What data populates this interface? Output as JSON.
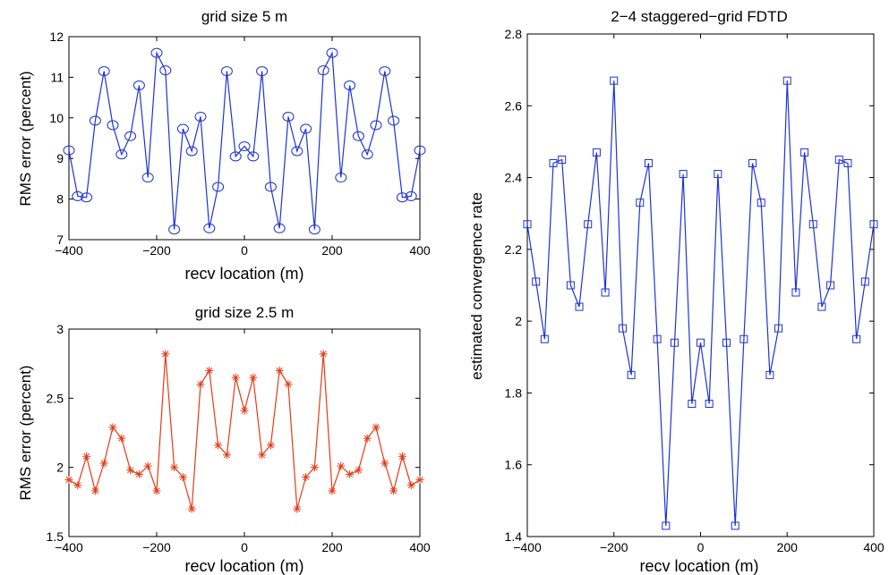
{
  "chart_data": [
    {
      "type": "line",
      "title": "grid size 5 m",
      "xlabel": "recv location (m)",
      "ylabel": "RMS error (percent)",
      "xlim": [
        -400,
        400
      ],
      "ylim": [
        7,
        12
      ],
      "xticks": [
        -400,
        -200,
        0,
        200,
        400
      ],
      "yticks": [
        7,
        8,
        9,
        10,
        11,
        12
      ],
      "grid": false,
      "marker": "circle",
      "color": "#1f33d6",
      "x": [
        -400,
        -380,
        -360,
        -340,
        -320,
        -300,
        -280,
        -260,
        -240,
        -220,
        -200,
        -180,
        -160,
        -140,
        -120,
        -100,
        -80,
        -60,
        -40,
        -20,
        0,
        20,
        40,
        60,
        80,
        100,
        120,
        140,
        160,
        180,
        200,
        220,
        240,
        260,
        280,
        300,
        320,
        340,
        360,
        380,
        400
      ],
      "series": [
        {
          "values": [
            9.2,
            8.07,
            8.04,
            9.93,
            11.15,
            9.82,
            9.1,
            9.55,
            10.8,
            8.53,
            11.6,
            11.17,
            7.25,
            9.73,
            9.18,
            10.03,
            7.28,
            8.3,
            11.15,
            9.05,
            9.3,
            9.05,
            11.15,
            8.3,
            7.28,
            10.03,
            9.18,
            9.73,
            7.25,
            11.17,
            11.6,
            8.53,
            10.8,
            9.55,
            9.1,
            9.82,
            11.15,
            9.93,
            8.04,
            8.07,
            9.2
          ]
        }
      ]
    },
    {
      "type": "line",
      "title": "grid size 2.5 m",
      "xlabel": "recv location (m)",
      "ylabel": "RMS error (percent)",
      "xlim": [
        -400,
        400
      ],
      "ylim": [
        1.5,
        3
      ],
      "xticks": [
        -400,
        -200,
        0,
        200,
        400
      ],
      "yticks": [
        "1.5",
        "2",
        "2.5",
        "3"
      ],
      "grid": false,
      "marker": "asterisk",
      "color": "#e63a17",
      "x": [
        -400,
        -380,
        -360,
        -340,
        -320,
        -300,
        -280,
        -260,
        -240,
        -220,
        -200,
        -180,
        -160,
        -140,
        -120,
        -100,
        -80,
        -60,
        -40,
        -20,
        0,
        20,
        40,
        60,
        80,
        100,
        120,
        140,
        160,
        180,
        200,
        220,
        240,
        260,
        280,
        300,
        320,
        340,
        360,
        380,
        400
      ],
      "series": [
        {
          "values": [
            1.91,
            1.87,
            2.08,
            1.83,
            2.03,
            2.29,
            2.21,
            1.98,
            1.95,
            2.01,
            1.83,
            2.82,
            2.0,
            1.93,
            1.7,
            2.6,
            2.7,
            2.16,
            2.09,
            2.65,
            2.41,
            2.65,
            2.09,
            2.16,
            2.7,
            2.6,
            1.7,
            1.93,
            2.0,
            2.82,
            1.83,
            2.01,
            1.95,
            1.98,
            2.21,
            2.29,
            2.03,
            1.83,
            2.08,
            1.87,
            1.91
          ]
        }
      ]
    },
    {
      "type": "line",
      "title": "2−4 staggered−grid FDTD",
      "xlabel": "recv location (m)",
      "ylabel": "estimated convergence rate",
      "xlim": [
        -400,
        400
      ],
      "ylim": [
        1.4,
        2.8
      ],
      "xticks": [
        -400,
        -200,
        0,
        200,
        400
      ],
      "yticks": [
        "1.4",
        "1.6",
        "1.8",
        "2",
        "2.2",
        "2.4",
        "2.6",
        "2.8"
      ],
      "grid": false,
      "marker": "square",
      "color": "#1f33d6",
      "x": [
        -400,
        -380,
        -360,
        -340,
        -320,
        -300,
        -280,
        -260,
        -240,
        -220,
        -200,
        -180,
        -160,
        -140,
        -120,
        -100,
        -80,
        -60,
        -40,
        -20,
        0,
        20,
        40,
        60,
        80,
        100,
        120,
        140,
        160,
        180,
        200,
        220,
        240,
        260,
        280,
        300,
        320,
        340,
        360,
        380,
        400
      ],
      "series": [
        {
          "values": [
            2.27,
            2.11,
            1.95,
            2.44,
            2.45,
            2.1,
            2.04,
            2.27,
            2.47,
            2.08,
            2.67,
            1.98,
            1.85,
            2.33,
            2.44,
            1.95,
            1.43,
            1.94,
            2.41,
            1.77,
            1.94,
            1.77,
            2.41,
            1.94,
            1.43,
            1.95,
            2.44,
            2.33,
            1.85,
            1.98,
            2.67,
            2.08,
            2.47,
            2.27,
            2.04,
            2.1,
            2.45,
            2.44,
            1.95,
            2.11,
            2.27
          ]
        }
      ]
    }
  ]
}
